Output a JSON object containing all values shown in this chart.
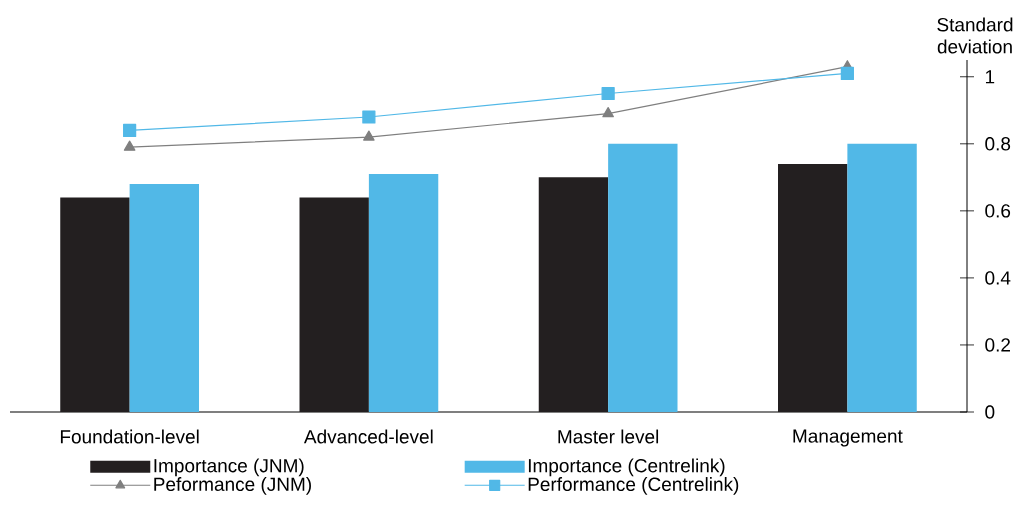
{
  "chart_data": {
    "type": "bar",
    "categories": [
      "Foundation-level",
      "Advanced-level",
      "Master level",
      "Management"
    ],
    "series": [
      {
        "name": "Importance (JNM)",
        "color": "#231f20",
        "values": [
          0.64,
          0.64,
          0.7,
          0.74
        ]
      },
      {
        "name": "Importance (Centrelink)",
        "color": "#51b8e7",
        "values": [
          0.68,
          0.71,
          0.8,
          0.8
        ]
      },
      {
        "name": "Peformance (JNM)",
        "type": "line",
        "marker": "triangle",
        "color": "#7f7f7f",
        "values": [
          0.79,
          0.82,
          0.89,
          1.03
        ]
      },
      {
        "name": "Performance (Centrelink)",
        "type": "line",
        "marker": "square",
        "color": "#51b8e7",
        "values": [
          0.84,
          0.88,
          0.95,
          1.01
        ]
      }
    ],
    "ylabel": "Standard deviation",
    "ylim": [
      0,
      1.05
    ],
    "yticks": [
      0,
      0.2,
      0.4,
      0.6,
      0.8,
      1
    ],
    "legend": "bottom"
  }
}
